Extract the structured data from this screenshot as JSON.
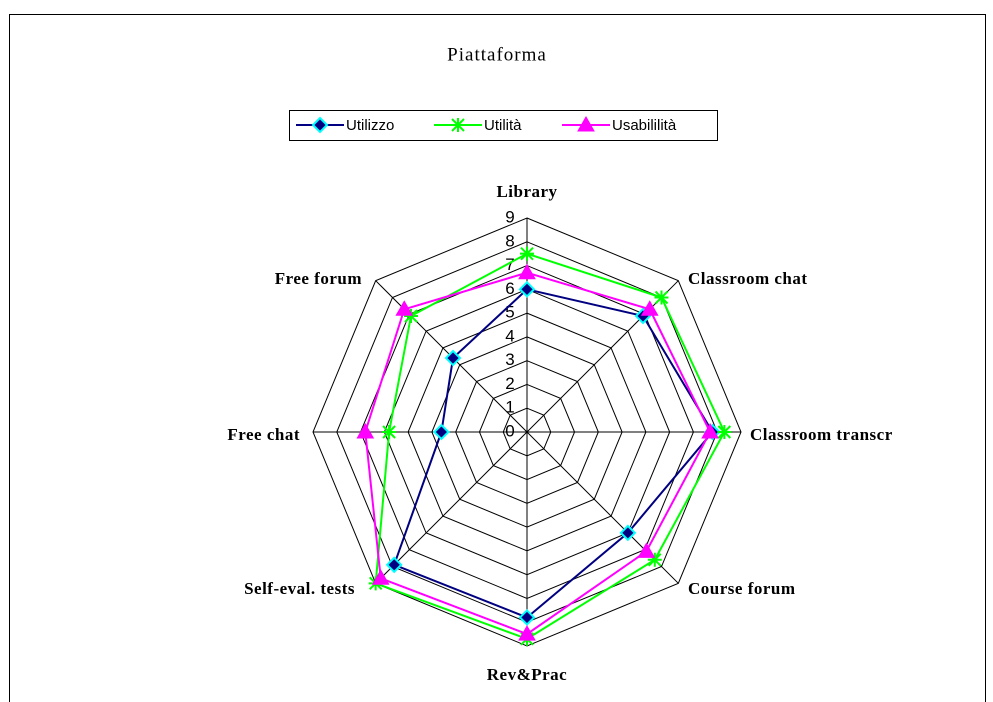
{
  "chart_data": {
    "type": "radar",
    "title": "Piattaforma",
    "categories": [
      "Library",
      "Classroom chat",
      "Classroom transcr",
      "Course forum",
      "Rev&Prac",
      "Self-eval. tests",
      "Free chat",
      "Free forum"
    ],
    "series": [
      {
        "name": "Utilizzo",
        "color": "#000080",
        "values": [
          6.0,
          6.9,
          7.8,
          6.0,
          7.8,
          7.9,
          3.6,
          4.4
        ]
      },
      {
        "name": "Utilità",
        "color": "#00ff00",
        "values": [
          7.5,
          8.0,
          8.3,
          7.6,
          8.7,
          9.0,
          5.8,
          6.9
        ]
      },
      {
        "name": "Usabililità",
        "color": "#ff00ff",
        "values": [
          6.7,
          7.3,
          7.7,
          7.1,
          8.5,
          8.7,
          6.8,
          7.3
        ]
      }
    ],
    "ylim": [
      0,
      9
    ],
    "yticks": [
      0,
      1,
      2,
      3,
      4,
      5,
      6,
      7,
      8,
      9
    ],
    "grid": true
  }
}
